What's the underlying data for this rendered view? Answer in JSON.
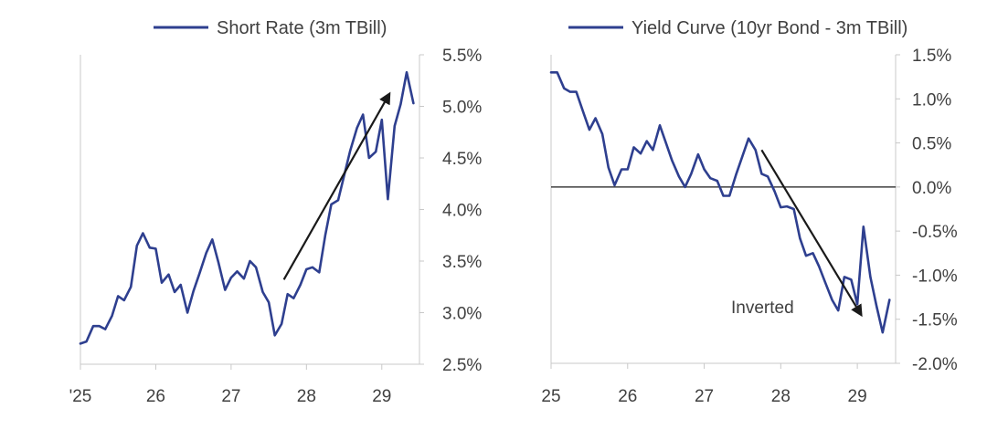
{
  "chart_data": [
    {
      "type": "line",
      "legend": "Short Rate (3m TBill)",
      "y_axis_side": "right",
      "ylim": [
        2.5,
        5.5
      ],
      "xlim": [
        25,
        29.5
      ],
      "x_ticks": [
        25,
        26,
        27,
        28,
        29
      ],
      "x_tick_labels": [
        "'25",
        "26",
        "27",
        "28",
        "29"
      ],
      "y_ticks": [
        2.5,
        3.0,
        3.5,
        4.0,
        4.5,
        5.0,
        5.5
      ],
      "y_tick_labels": [
        "2.5%",
        "3.0%",
        "3.5%",
        "4.0%",
        "4.5%",
        "5.0%",
        "5.5%"
      ],
      "grid": false,
      "color": "#2e3f8f",
      "series": [
        {
          "x": [
            25.0,
            25.08,
            25.17,
            25.25,
            25.33,
            25.42,
            25.5,
            25.58,
            25.67,
            25.75,
            25.83,
            25.92,
            26.0,
            26.08,
            26.17,
            26.25,
            26.33,
            26.42,
            26.5,
            26.58,
            26.67,
            26.75,
            26.83,
            26.92,
            27.0,
            27.08,
            27.17,
            27.25,
            27.33,
            27.42,
            27.5,
            27.58,
            27.67,
            27.75,
            27.83,
            27.92,
            28.0,
            28.08,
            28.17,
            28.25,
            28.33,
            28.42,
            28.5,
            28.58,
            28.67,
            28.75,
            28.83,
            28.92,
            29.0,
            29.08,
            29.17,
            29.25,
            29.33,
            29.42
          ],
          "values": [
            2.7,
            2.72,
            2.87,
            2.87,
            2.84,
            2.97,
            3.16,
            3.12,
            3.25,
            3.65,
            3.77,
            3.63,
            3.62,
            3.29,
            3.37,
            3.2,
            3.27,
            3.0,
            3.21,
            3.38,
            3.58,
            3.71,
            3.49,
            3.22,
            3.34,
            3.4,
            3.33,
            3.5,
            3.44,
            3.2,
            3.1,
            2.78,
            2.89,
            3.18,
            3.14,
            3.27,
            3.42,
            3.44,
            3.39,
            3.75,
            4.05,
            4.09,
            4.33,
            4.57,
            4.79,
            4.92,
            4.5,
            4.56,
            4.87,
            4.1,
            4.81,
            5.02,
            5.33,
            5.03
          ]
        }
      ],
      "arrow": {
        "from": [
          27.7,
          3.32
        ],
        "to": [
          29.1,
          5.12
        ]
      }
    },
    {
      "type": "line",
      "legend": "Yield Curve (10yr Bond - 3m TBill)",
      "y_axis_side": "right",
      "ylim": [
        -2.0,
        1.5
      ],
      "xlim": [
        25,
        29.5
      ],
      "x_ticks": [
        25,
        26,
        27,
        28,
        29
      ],
      "x_tick_labels": [
        "25",
        "26",
        "27",
        "28",
        "29"
      ],
      "y_ticks": [
        1.5,
        1.0,
        0.5,
        0.0,
        -0.5,
        -1.0,
        -1.5,
        -2.0
      ],
      "y_tick_labels": [
        "1.5%",
        "1.0%",
        "0.5%",
        "0.0%",
        "-0.5%",
        "-1.0%",
        "-1.5%",
        "-2.0%"
      ],
      "zero_line": true,
      "grid": false,
      "color": "#2e3f8f",
      "annotation": "Inverted",
      "series": [
        {
          "x": [
            25.0,
            25.08,
            25.17,
            25.25,
            25.33,
            25.42,
            25.5,
            25.58,
            25.67,
            25.75,
            25.83,
            25.92,
            26.0,
            26.08,
            26.17,
            26.25,
            26.33,
            26.42,
            26.5,
            26.58,
            26.67,
            26.75,
            26.83,
            26.92,
            27.0,
            27.08,
            27.17,
            27.25,
            27.33,
            27.42,
            27.5,
            27.58,
            27.67,
            27.75,
            27.83,
            27.92,
            28.0,
            28.08,
            28.17,
            28.25,
            28.33,
            28.42,
            28.5,
            28.58,
            28.67,
            28.75,
            28.83,
            28.92,
            29.0,
            29.08,
            29.17,
            29.25,
            29.33,
            29.42
          ],
          "values": [
            1.3,
            1.3,
            1.12,
            1.08,
            1.08,
            0.85,
            0.65,
            0.78,
            0.6,
            0.22,
            0.02,
            0.2,
            0.2,
            0.45,
            0.38,
            0.52,
            0.42,
            0.7,
            0.5,
            0.3,
            0.12,
            0.0,
            0.15,
            0.37,
            0.2,
            0.1,
            0.07,
            -0.1,
            -0.1,
            0.15,
            0.35,
            0.55,
            0.42,
            0.15,
            0.12,
            -0.05,
            -0.23,
            -0.22,
            -0.25,
            -0.58,
            -0.78,
            -0.75,
            -0.9,
            -1.08,
            -1.28,
            -1.4,
            -1.02,
            -1.05,
            -1.33,
            -0.45,
            -1.02,
            -1.35,
            -1.65,
            -1.28
          ]
        }
      ],
      "arrow": {
        "from": [
          27.75,
          0.42
        ],
        "to": [
          29.05,
          -1.45
        ]
      }
    }
  ]
}
